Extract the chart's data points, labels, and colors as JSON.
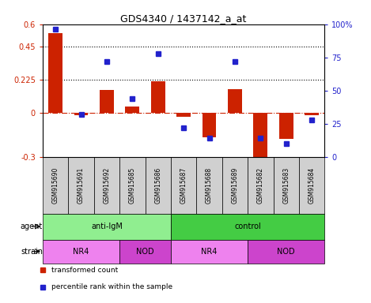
{
  "title": "GDS4340 / 1437142_a_at",
  "samples": [
    "GSM915690",
    "GSM915691",
    "GSM915692",
    "GSM915685",
    "GSM915686",
    "GSM915687",
    "GSM915688",
    "GSM915689",
    "GSM915682",
    "GSM915683",
    "GSM915684"
  ],
  "red_values": [
    0.54,
    -0.02,
    0.155,
    0.04,
    0.21,
    -0.03,
    -0.17,
    0.16,
    -0.33,
    -0.18,
    -0.02
  ],
  "blue_percentile": [
    96,
    32,
    72,
    44,
    78,
    22,
    14,
    72,
    14,
    10,
    28
  ],
  "ylim_left": [
    -0.3,
    0.6
  ],
  "ylim_right": [
    0,
    100
  ],
  "yticks_left": [
    -0.3,
    0.0,
    0.225,
    0.45,
    0.6
  ],
  "yticks_right": [
    0,
    25,
    50,
    75,
    100
  ],
  "ytick_labels_left": [
    "-0.3",
    "0",
    "0.225",
    "0.45",
    "0.6"
  ],
  "ytick_labels_right": [
    "0",
    "25",
    "50",
    "75",
    "100%"
  ],
  "hlines": [
    0.225,
    0.45
  ],
  "zero_line": 0.0,
  "agent_groups": [
    {
      "label": "anti-IgM",
      "start": 0,
      "end": 5,
      "color": "#90ee90"
    },
    {
      "label": "control",
      "start": 5,
      "end": 11,
      "color": "#44cc44"
    }
  ],
  "strain_groups": [
    {
      "label": "NR4",
      "start": 0,
      "end": 3,
      "color": "#ee82ee"
    },
    {
      "label": "NOD",
      "start": 3,
      "end": 5,
      "color": "#cc44cc"
    },
    {
      "label": "NR4",
      "start": 5,
      "end": 8,
      "color": "#ee82ee"
    },
    {
      "label": "NOD",
      "start": 8,
      "end": 11,
      "color": "#cc44cc"
    }
  ],
  "red_color": "#cc2200",
  "blue_color": "#2222cc",
  "bar_width": 0.55,
  "legend_red": "transformed count",
  "legend_blue": "percentile rank within the sample",
  "row_label_agent": "agent",
  "row_label_strain": "strain",
  "background_color": "#ffffff",
  "xtick_bg": "#d0d0d0",
  "chart_bg": "#ffffff"
}
